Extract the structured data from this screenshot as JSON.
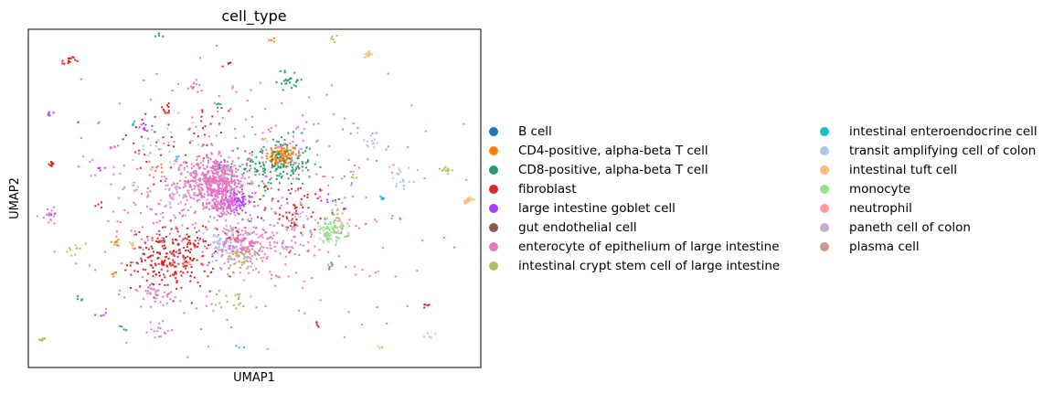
{
  "chart_data": {
    "type": "scatter",
    "title": "cell_type",
    "xlabel": "UMAP1",
    "ylabel": "UMAP2",
    "xlim": [
      -10,
      10
    ],
    "ylim": [
      -10,
      10
    ],
    "grid": false,
    "legend_placement": "right",
    "series": [
      {
        "name": "B cell",
        "color": "#1f77b4",
        "clusters": [
          [
            -1.6,
            2.0,
            0.2,
            6
          ],
          [
            3.6,
            -0.2,
            0.1,
            3
          ]
        ]
      },
      {
        "name": "CD4-positive, alpha-beta T cell",
        "color": "#ff7f0e",
        "clusters": [
          [
            1.2,
            2.5,
            0.35,
            120
          ],
          [
            -6.1,
            -2.6,
            0.15,
            8
          ],
          [
            -6.2,
            -4.5,
            0.1,
            5
          ],
          [
            -4.2,
            1.8,
            0.15,
            6
          ],
          [
            0.8,
            9.4,
            0.1,
            4
          ]
        ]
      },
      {
        "name": "CD8-positive, alpha-beta T cell",
        "color": "#279e68",
        "clusters": [
          [
            1.0,
            2.0,
            0.8,
            160
          ],
          [
            1.6,
            7.0,
            0.3,
            25
          ],
          [
            -4.2,
            9.7,
            0.1,
            4
          ],
          [
            -1.5,
            5.5,
            0.1,
            5
          ],
          [
            3.2,
            -4.0,
            0.1,
            4
          ],
          [
            -7.8,
            -5.9,
            0.1,
            4
          ],
          [
            -5.8,
            -7.7,
            0.1,
            4
          ]
        ]
      },
      {
        "name": "fibroblast",
        "color": "#d62728",
        "clusters": [
          [
            -3.6,
            -3.6,
            0.9,
            240
          ],
          [
            1.9,
            -0.5,
            0.7,
            60
          ],
          [
            -8.2,
            8.1,
            0.15,
            15
          ],
          [
            -4.2,
            2.8,
            1.5,
            40
          ],
          [
            -9.0,
            2.0,
            0.1,
            8
          ],
          [
            -3.9,
            5.3,
            0.15,
            10
          ],
          [
            2.8,
            -7.5,
            0.1,
            6
          ],
          [
            -0.9,
            -2.2,
            0.4,
            15
          ],
          [
            -1.2,
            8.0,
            0.1,
            5
          ],
          [
            7.6,
            -6.3,
            0.1,
            5
          ],
          [
            -6.8,
            -0.4,
            0.1,
            4
          ],
          [
            -2.0,
            4.5,
            0.3,
            10
          ]
        ]
      },
      {
        "name": "large intestine goblet cell",
        "color": "#aa40fc",
        "clusters": [
          [
            -0.9,
            -0.2,
            0.4,
            90
          ],
          [
            -9.1,
            5.0,
            0.1,
            6
          ],
          [
            -3.9,
            -10.0,
            0.1,
            5
          ],
          [
            -4.7,
            4.2,
            0.2,
            8
          ],
          [
            -9.0,
            -0.9,
            0.1,
            5
          ],
          [
            3.1,
            -0.1,
            0.1,
            4
          ],
          [
            -6.8,
            -6.8,
            0.1,
            4
          ],
          [
            -6.8,
            1.8,
            0.1,
            4
          ]
        ]
      },
      {
        "name": "gut endothelial cell",
        "color": "#8c564b",
        "clusters": [
          [
            -4.1,
            -2.5,
            0.15,
            4
          ],
          [
            1.6,
            -1.6,
            0.1,
            3
          ]
        ]
      },
      {
        "name": "enterocyte of epithelium of large intestine",
        "color": "#e377c2",
        "clusters": [
          [
            -1.7,
            1.0,
            0.7,
            500
          ],
          [
            -0.5,
            -2.8,
            0.6,
            170
          ],
          [
            -1.3,
            -0.5,
            0.3,
            60
          ],
          [
            -4.0,
            -0.2,
            1.2,
            60
          ],
          [
            -9.0,
            -1.0,
            0.2,
            15
          ],
          [
            -4.6,
            -5.4,
            0.3,
            25
          ],
          [
            1.6,
            -2.5,
            0.6,
            40
          ],
          [
            0,
            0,
            3.8,
            420
          ],
          [
            -2.7,
            6.7,
            0.2,
            10
          ],
          [
            -4.3,
            -7.8,
            0.3,
            15
          ],
          [
            -6.2,
            3.0,
            0.1,
            6
          ],
          [
            -3.8,
            -5.9,
            0.2,
            10
          ]
        ]
      },
      {
        "name": "intestinal crypt stem cell of large intestine",
        "color": "#b5bd61",
        "clusters": [
          [
            -0.5,
            -3.5,
            0.4,
            40
          ],
          [
            -1.0,
            -6.0,
            0.4,
            18
          ],
          [
            8.5,
            1.7,
            0.1,
            12
          ],
          [
            -8.0,
            -3.0,
            0.15,
            10
          ],
          [
            -9.4,
            -8.3,
            0.1,
            8
          ],
          [
            3.5,
            9.4,
            0.1,
            5
          ],
          [
            3.6,
            -0.8,
            0.15,
            6
          ],
          [
            4.3,
            1.3,
            0.1,
            5
          ]
        ]
      },
      {
        "name": "intestinal enteroendocrine cell",
        "color": "#17becf",
        "clusters": [
          [
            5.7,
            0.0,
            0.1,
            5
          ],
          [
            -5.4,
            4.4,
            0.1,
            4
          ],
          [
            -3.4,
            2.3,
            0.1,
            3
          ],
          [
            -0.7,
            -8.8,
            0.1,
            3
          ]
        ]
      },
      {
        "name": "transit amplifying cell of colon",
        "color": "#aec7e8",
        "clusters": [
          [
            -1.5,
            -2.8,
            0.5,
            40
          ],
          [
            5.2,
            3.4,
            0.3,
            15
          ],
          [
            6.5,
            1.5,
            0.3,
            12
          ],
          [
            -3.5,
            3.2,
            1.0,
            25
          ],
          [
            6.6,
            0.8,
            0.15,
            8
          ],
          [
            7.8,
            -8.2,
            0.1,
            5
          ],
          [
            -0.5,
            -3.6,
            0.1,
            4
          ]
        ]
      },
      {
        "name": "intestinal tuft cell",
        "color": "#ffbb78",
        "clusters": [
          [
            9.4,
            -0.1,
            0.1,
            22
          ],
          [
            5.0,
            8.5,
            0.1,
            15
          ],
          [
            -5.4,
            -2.7,
            0.1,
            6
          ],
          [
            5.6,
            -8.8,
            0.1,
            4
          ],
          [
            0.4,
            3.4,
            0.1,
            4
          ],
          [
            -2.9,
            -3.8,
            0.1,
            4
          ]
        ]
      },
      {
        "name": "monocyte",
        "color": "#98df8a",
        "clusters": [
          [
            3.4,
            -1.9,
            0.35,
            90
          ]
        ]
      },
      {
        "name": "neutrophil",
        "color": "#ff9896",
        "clusters": [
          [
            3.8,
            -1.7,
            0.15,
            4
          ]
        ]
      },
      {
        "name": "paneth cell of colon",
        "color": "#c5b0d5",
        "clusters": [
          [
            -3.5,
            0.2,
            0.6,
            40
          ],
          [
            -1.0,
            -2.0,
            0.3,
            15
          ],
          [
            2.0,
            -1.1,
            0.3,
            8
          ],
          [
            -1.2,
            1.4,
            0.25,
            10
          ],
          [
            3.5,
            -0.5,
            0.2,
            5
          ]
        ]
      },
      {
        "name": "plasma cell",
        "color": "#c49c94",
        "clusters": [
          [
            -1.0,
            -4.2,
            0.3,
            10
          ],
          [
            0.3,
            -3.1,
            0.2,
            4
          ]
        ]
      }
    ]
  }
}
